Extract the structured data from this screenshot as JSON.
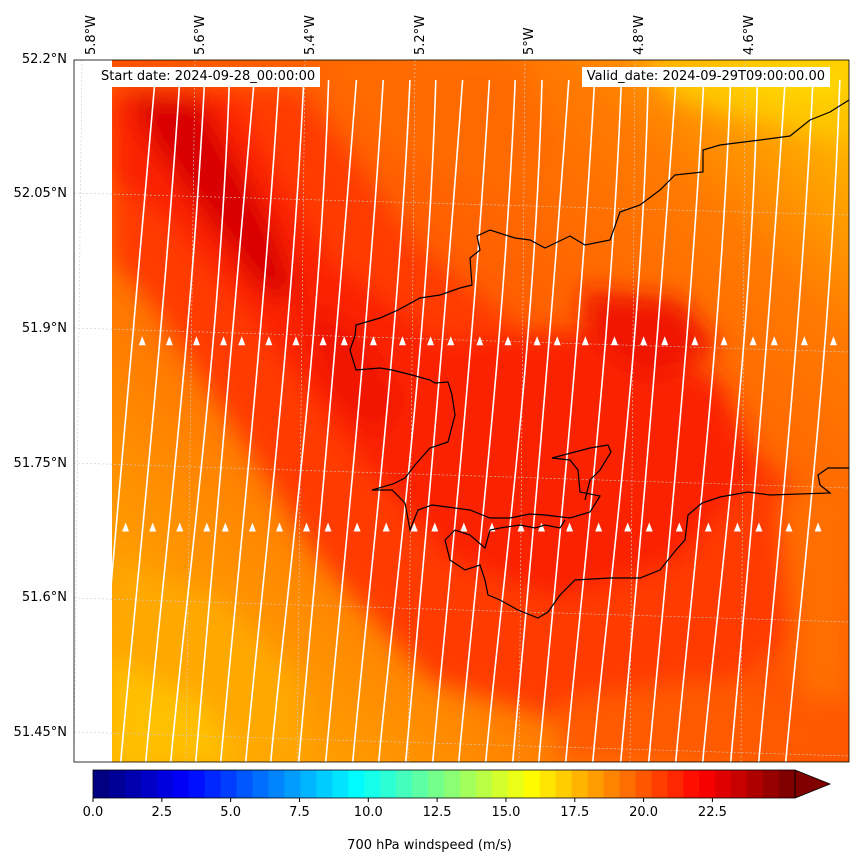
{
  "map": {
    "start_date_text": "Start date: 2024-09-28_00:00:00",
    "valid_date_text": "Valid_date: 2024-09-29T09:00:00.00",
    "lon_labels": [
      "5.8°W",
      "5.6°W",
      "5.4°W",
      "5.2°W",
      "5°W",
      "4.8°W",
      "4.6°W"
    ],
    "lat_labels": [
      "52.2°N",
      "52.05°N",
      "51.9°N",
      "51.75°N",
      "51.6°N",
      "51.45°N"
    ],
    "field": "700 hPa windspeed",
    "streamline_color": "#ffffff",
    "coastline_color": "#000000"
  },
  "colorbar": {
    "label": "700 hPa windspeed (m/s)",
    "ticks": [
      "0.0",
      "2.5",
      "5.0",
      "7.5",
      "10.0",
      "12.5",
      "15.0",
      "17.5",
      "20.0",
      "22.5"
    ],
    "min": 0,
    "max": 25.5,
    "colormap": "jet",
    "extend": "max"
  }
}
